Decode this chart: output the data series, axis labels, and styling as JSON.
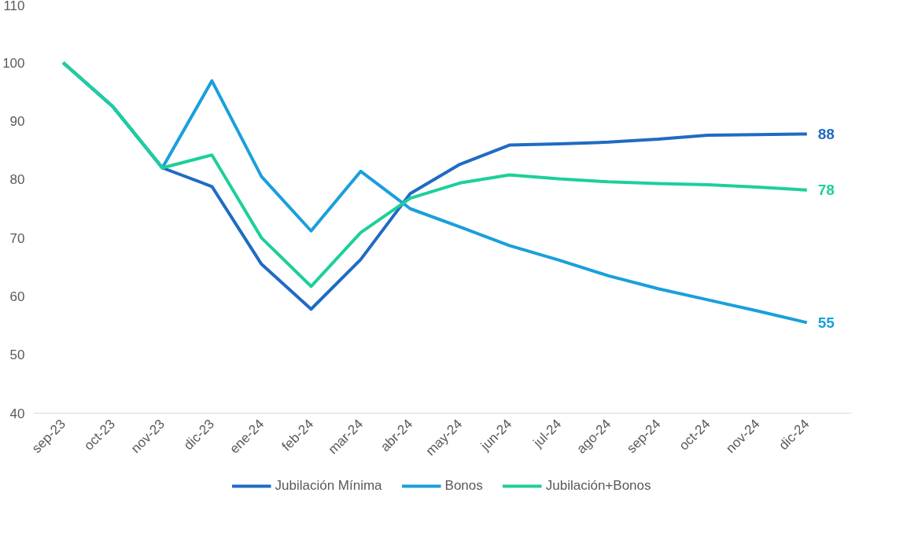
{
  "chart_data": {
    "type": "line",
    "categories": [
      "sep-23",
      "oct-23",
      "nov-23",
      "dic-23",
      "ene-24",
      "feb-24",
      "mar-24",
      "abr-24",
      "may-24",
      "jun-24",
      "jul-24",
      "ago-24",
      "sep-24",
      "oct-24",
      "nov-24",
      "dic-24"
    ],
    "series": [
      {
        "name": "Jubilación Mínima",
        "color": "#1f6bc4",
        "values": [
          100,
          92.5,
          82,
          78.8,
          65.5,
          57.8,
          66.3,
          77.6,
          82.6,
          85.9,
          86.1,
          86.4,
          86.9,
          87.6,
          87.7,
          87.8
        ],
        "value_labels": [
          null,
          null,
          null,
          null,
          null,
          null,
          null,
          null,
          null,
          null,
          null,
          null,
          null,
          null,
          null,
          "88"
        ]
      },
      {
        "name": "Bonos",
        "color": "#1a9fdc",
        "values": [
          100,
          92.5,
          82,
          96.9,
          80.5,
          71.2,
          81.4,
          75,
          71.9,
          68.7,
          66.2,
          63.5,
          61.3,
          59.4,
          57.5,
          55.5
        ],
        "value_labels": [
          null,
          null,
          null,
          null,
          null,
          null,
          null,
          null,
          null,
          null,
          null,
          null,
          null,
          null,
          null,
          "55"
        ]
      },
      {
        "name": "Jubilación+Bonos",
        "color": "#1dcf9b",
        "values": [
          100,
          92.5,
          82,
          84.2,
          70,
          61.7,
          70.9,
          76.8,
          79.4,
          80.8,
          80.1,
          79.6,
          79.3,
          79.1,
          78.7,
          78.2
        ],
        "value_labels": [
          null,
          null,
          null,
          null,
          null,
          null,
          null,
          null,
          null,
          null,
          null,
          null,
          null,
          null,
          null,
          "78"
        ]
      }
    ],
    "ylim": [
      40,
      110
    ],
    "yticks": [
      40,
      50,
      60,
      70,
      80,
      90,
      100,
      110
    ],
    "grid": false,
    "legend": "bottom",
    "marker": "none",
    "line_style": "solid"
  }
}
